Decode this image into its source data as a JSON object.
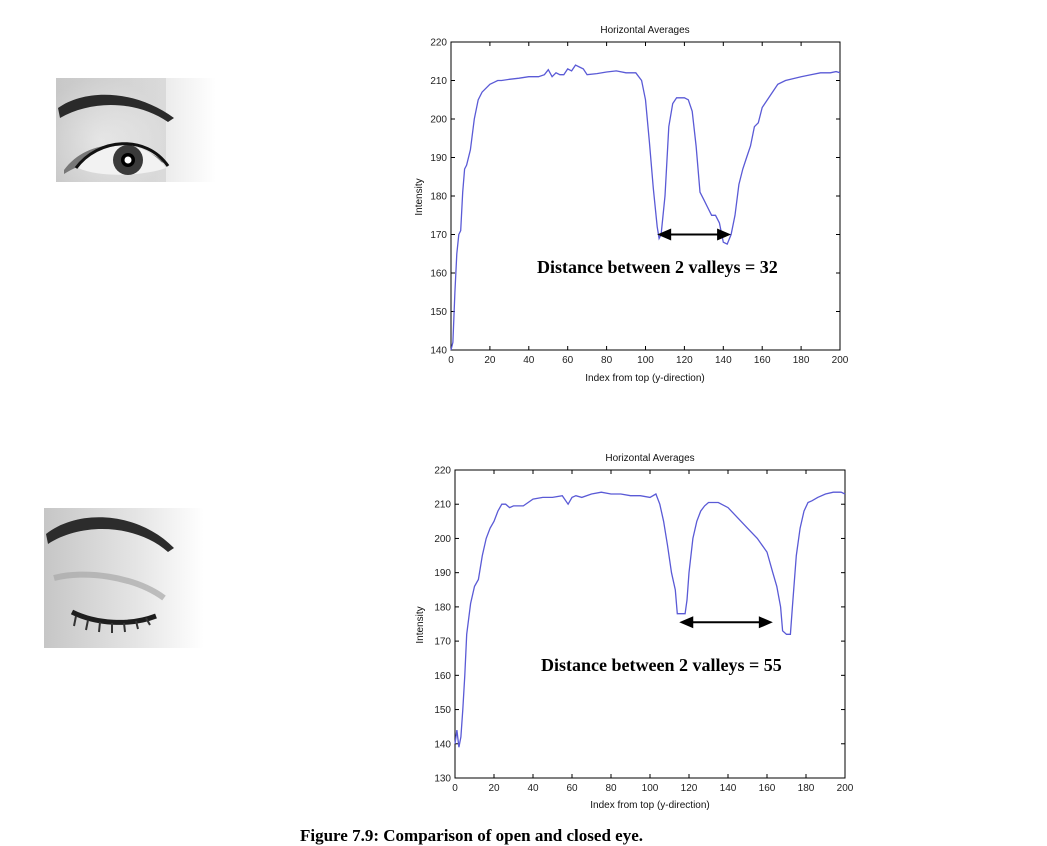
{
  "images": {
    "open_eye": "open-eye-photo",
    "closed_eye": "closed-eye-photo"
  },
  "caption": "Figure 7.9: Comparison of open and closed eye.",
  "colors": {
    "line": "#5a5ad6",
    "axis": "#000000"
  },
  "chart_data": [
    {
      "type": "line",
      "title": "Horizontal Averages",
      "xlabel": "Index from top (y-direction)",
      "ylabel": "Intensity",
      "xlim": [
        0,
        200
      ],
      "ylim": [
        140,
        220
      ],
      "xticks": [
        0,
        20,
        40,
        60,
        80,
        100,
        120,
        140,
        160,
        180,
        200
      ],
      "yticks": [
        140,
        150,
        160,
        170,
        180,
        190,
        200,
        210,
        220
      ],
      "annotation": "Distance between 2 valleys = 32",
      "arrow": {
        "from": [
          106,
          170
        ],
        "to": [
          144,
          170
        ]
      },
      "series": [
        {
          "x": [
            0,
            1,
            2,
            3,
            4,
            5,
            6,
            7,
            8,
            10,
            12,
            14,
            16,
            18,
            20,
            22,
            24,
            26,
            30,
            35,
            40,
            45,
            48,
            50,
            52,
            54,
            56,
            58,
            60,
            62,
            64,
            66,
            68,
            70,
            75,
            80,
            85,
            90,
            95,
            98,
            100,
            102,
            104,
            106,
            107,
            108,
            110,
            112,
            114,
            116,
            118,
            120,
            122,
            124,
            126,
            128,
            130,
            132,
            134,
            136,
            138,
            140,
            142,
            144,
            146,
            148,
            150,
            152,
            154,
            156,
            158,
            160,
            164,
            168,
            172,
            176,
            180,
            185,
            190,
            195,
            198,
            200
          ],
          "y": [
            140,
            142,
            155,
            165,
            170,
            171,
            181,
            187,
            188,
            192,
            200,
            205,
            207,
            208,
            209,
            209.5,
            210,
            210,
            210.3,
            210.6,
            211,
            211,
            211.5,
            212.8,
            211,
            212,
            211.5,
            211.5,
            213,
            212.5,
            214,
            213.5,
            213,
            211.5,
            211.8,
            212.2,
            212.5,
            212,
            212,
            210,
            205,
            194,
            182,
            172,
            169,
            170,
            180,
            198,
            204,
            205.5,
            205.5,
            205.5,
            205,
            202,
            193,
            181,
            179,
            177,
            175,
            175,
            173,
            168,
            167.5,
            170,
            175,
            183,
            187,
            190,
            193,
            198,
            199,
            203,
            206,
            209,
            210,
            210.5,
            211,
            211.5,
            212,
            212,
            212.3,
            212
          ]
        }
      ]
    },
    {
      "type": "line",
      "title": "Horizontal Averages",
      "xlabel": "Index from top (y-direction)",
      "ylabel": "Intensity",
      "xlim": [
        0,
        200
      ],
      "ylim": [
        130,
        220
      ],
      "xticks": [
        0,
        20,
        40,
        60,
        80,
        100,
        120,
        140,
        160,
        180,
        200
      ],
      "yticks": [
        130,
        140,
        150,
        160,
        170,
        180,
        190,
        200,
        210,
        220
      ],
      "annotation": "Distance between 2 valleys = 55",
      "arrow": {
        "from": [
          115,
          175.5
        ],
        "to": [
          163,
          175.5
        ]
      },
      "series": [
        {
          "x": [
            0,
            1,
            2,
            3,
            4,
            5,
            6,
            8,
            10,
            12,
            14,
            16,
            18,
            20,
            22,
            24,
            26,
            28,
            30,
            35,
            40,
            45,
            50,
            55,
            58,
            60,
            62,
            65,
            70,
            75,
            80,
            85,
            90,
            95,
            100,
            103,
            105,
            107,
            109,
            111,
            113,
            114,
            116,
            118,
            119,
            120,
            122,
            124,
            126,
            128,
            130,
            135,
            140,
            145,
            150,
            155,
            160,
            163,
            165,
            167,
            168,
            170,
            172,
            173,
            175,
            177,
            179,
            181,
            183,
            186,
            190,
            194,
            198,
            200
          ],
          "y": [
            140,
            144,
            139,
            142,
            150,
            160,
            172,
            181,
            186,
            188,
            195,
            200,
            203,
            205,
            208,
            210,
            210,
            209,
            209.5,
            209.5,
            211.5,
            212,
            212,
            212.5,
            210,
            212,
            212.5,
            212,
            213,
            213.5,
            213,
            213,
            212.5,
            212.5,
            212,
            213,
            210,
            205,
            198,
            190,
            185,
            178,
            178,
            178,
            182,
            190,
            200,
            205,
            208,
            209.5,
            210.5,
            210.5,
            209,
            206,
            203,
            200,
            196,
            190,
            186,
            180,
            173,
            172,
            172,
            180,
            195,
            203,
            208,
            210.5,
            211,
            212,
            213,
            213.5,
            213.5,
            213
          ]
        }
      ]
    }
  ]
}
